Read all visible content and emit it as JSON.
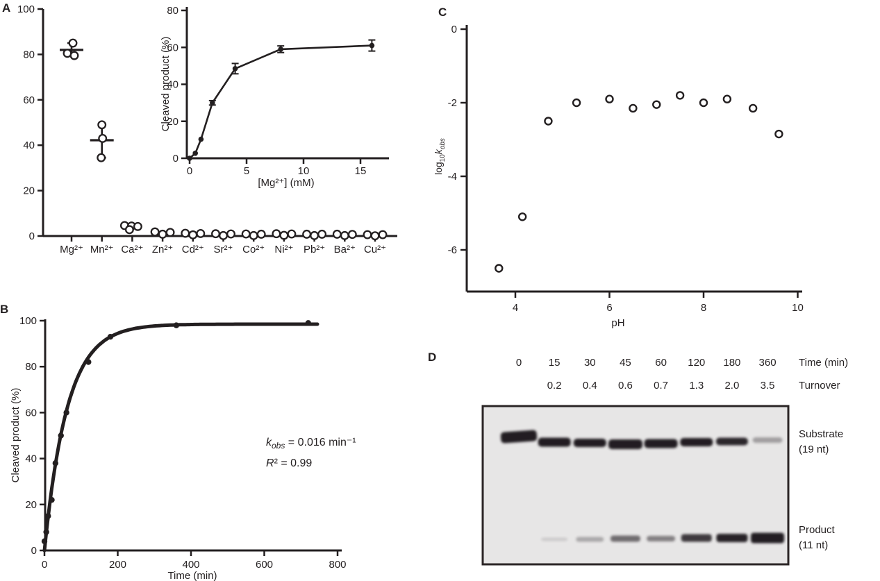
{
  "figure": {
    "background": "#ffffff",
    "ink": "#231f20"
  },
  "panels": {
    "A": {
      "label": "A"
    },
    "B": {
      "label": "B"
    },
    "C": {
      "label": "C"
    },
    "D": {
      "label": "D"
    }
  },
  "chart_data": [
    {
      "id": "A-main",
      "type": "scatter",
      "title": "",
      "xlabel": "",
      "ylabel": "Cleaved product (%)",
      "ylim": [
        0,
        100
      ],
      "yticks": [
        0,
        20,
        40,
        60,
        80,
        100
      ],
      "categories": [
        "Mg²⁺",
        "Mn²⁺",
        "Ca²⁺",
        "Zn²⁺",
        "Cd²⁺",
        "Sr²⁺",
        "Co²⁺",
        "Ni²⁺",
        "Pb²⁺",
        "Ba²⁺",
        "Cu²⁺"
      ],
      "replicate_points": [
        [
          [
            2,
            85
          ],
          [
            -6,
            80.5
          ],
          [
            4,
            79.5
          ]
        ],
        [
          [
            0,
            49
          ],
          [
            1,
            43
          ],
          [
            -1,
            34.5
          ]
        ],
        [
          [
            -11,
            4.6
          ],
          [
            -1,
            4.4
          ],
          [
            8,
            4.2
          ],
          [
            -4,
            2.8
          ]
        ],
        [
          [
            -11,
            1.8
          ],
          [
            11,
            1.6
          ],
          [
            0,
            0.8
          ]
        ],
        [
          [
            -11,
            1.2
          ],
          [
            11,
            1.1
          ],
          [
            0,
            0.5
          ]
        ],
        [
          [
            -11,
            1.0
          ],
          [
            11,
            0.9
          ],
          [
            0,
            0.2
          ]
        ],
        [
          [
            -11,
            0.9
          ],
          [
            11,
            0.8
          ],
          [
            0,
            0.2
          ]
        ],
        [
          [
            -11,
            1.0
          ],
          [
            11,
            0.9
          ],
          [
            0,
            0.3
          ]
        ],
        [
          [
            -11,
            0.8
          ],
          [
            11,
            0.8
          ],
          [
            0,
            0.2
          ]
        ],
        [
          [
            -11,
            0.8
          ],
          [
            11,
            0.7
          ],
          [
            0,
            0.2
          ]
        ],
        [
          [
            -11,
            0.6
          ],
          [
            11,
            0.6
          ],
          [
            0,
            0.1
          ]
        ]
      ],
      "mean_bars": [
        {
          "category": 0,
          "mean": 82,
          "lo": 79.5,
          "hi": 85
        },
        {
          "category": 1,
          "mean": 42.2,
          "lo": 34.5,
          "hi": 49
        }
      ]
    },
    {
      "id": "A-inset",
      "type": "line",
      "x": [
        0,
        0.5,
        1,
        2,
        4,
        8,
        16
      ],
      "y": [
        0,
        2.7,
        10.3,
        30,
        48.5,
        59,
        61
      ],
      "yerr": [
        0,
        0,
        0,
        1.2,
        2.8,
        1.8,
        3
      ],
      "xlabel": "[Mg²⁺] (mM)",
      "ylabel": "Cleaved product (%)",
      "xlim": [
        0,
        17.5
      ],
      "ylim": [
        0,
        80
      ],
      "xticks": [
        0,
        5,
        10,
        15
      ],
      "yticks": [
        0,
        20,
        40,
        60,
        80
      ]
    },
    {
      "id": "B",
      "type": "scatter",
      "x": [
        0,
        5,
        10,
        20,
        30,
        45,
        60,
        120,
        180,
        360,
        720
      ],
      "y": [
        4,
        8,
        15,
        22,
        38,
        50,
        60,
        82,
        93,
        98,
        99
      ],
      "fit_kobs": 0.016,
      "fit_plateau": 98.5,
      "xlabel": "Time (min)",
      "ylabel": "Cleaved product (%)",
      "xlim": [
        0,
        800
      ],
      "ylim": [
        0,
        100
      ],
      "xticks": [
        0,
        200,
        400,
        600,
        800
      ],
      "yticks": [
        0,
        20,
        40,
        60,
        80,
        100
      ],
      "annotations": [
        {
          "segments": [
            {
              "t": "k",
              "i": true
            },
            {
              "t": "obs",
              "sub": true,
              "i": true
            },
            {
              "t": " = 0.016 min⁻¹"
            }
          ]
        },
        {
          "segments": [
            {
              "t": "R",
              "i": true
            },
            {
              "t": "² = 0.99"
            }
          ]
        }
      ]
    },
    {
      "id": "C",
      "type": "scatter",
      "x": [
        3.65,
        4.15,
        4.7,
        5.3,
        6.0,
        6.5,
        7.0,
        7.5,
        8.0,
        8.5,
        9.05,
        9.6
      ],
      "y": [
        -6.5,
        -5.1,
        -2.5,
        -2.0,
        -1.9,
        -2.15,
        -2.05,
        -1.8,
        -2.0,
        -1.9,
        -2.15,
        -2.85
      ],
      "xlabel": "pH",
      "ylabel_segments": [
        {
          "t": "log"
        },
        {
          "t": "10",
          "sub": true
        },
        {
          "t": "k",
          "i": true
        },
        {
          "t": "obs",
          "sub": true,
          "i": true
        }
      ],
      "xlim": [
        3.3,
        10
      ],
      "ylim": [
        -7.3,
        0
      ],
      "xticks": [
        4,
        6,
        8,
        10
      ],
      "yticks": [
        0,
        -2,
        -4,
        -6
      ]
    },
    {
      "id": "D",
      "type": "gel",
      "header_time_label": "Time (min)",
      "header_turnover_label": "Turnover",
      "row_labels": [
        {
          "line1": "Substrate",
          "line2": "(19 nt)"
        },
        {
          "line1": "Product",
          "line2": "(11 nt)"
        }
      ],
      "gel_bg": "#e7e6e6",
      "lanes": [
        {
          "time": "0",
          "turnover": "",
          "substrate": 1.0,
          "product": 0
        },
        {
          "time": "15",
          "turnover": "0.2",
          "substrate": 1.0,
          "product": 0.13
        },
        {
          "time": "30",
          "turnover": "0.4",
          "substrate": 1.0,
          "product": 0.3
        },
        {
          "time": "45",
          "turnover": "0.6",
          "substrate": 1.0,
          "product": 0.6
        },
        {
          "time": "60",
          "turnover": "0.7",
          "substrate": 1.0,
          "product": 0.5
        },
        {
          "time": "120",
          "turnover": "1.3",
          "substrate": 1.0,
          "product": 0.85
        },
        {
          "time": "180",
          "turnover": "2.0",
          "substrate": 0.95,
          "product": 0.97
        },
        {
          "time": "360",
          "turnover": "3.5",
          "substrate": 0.35,
          "product": 1.0
        }
      ]
    }
  ]
}
